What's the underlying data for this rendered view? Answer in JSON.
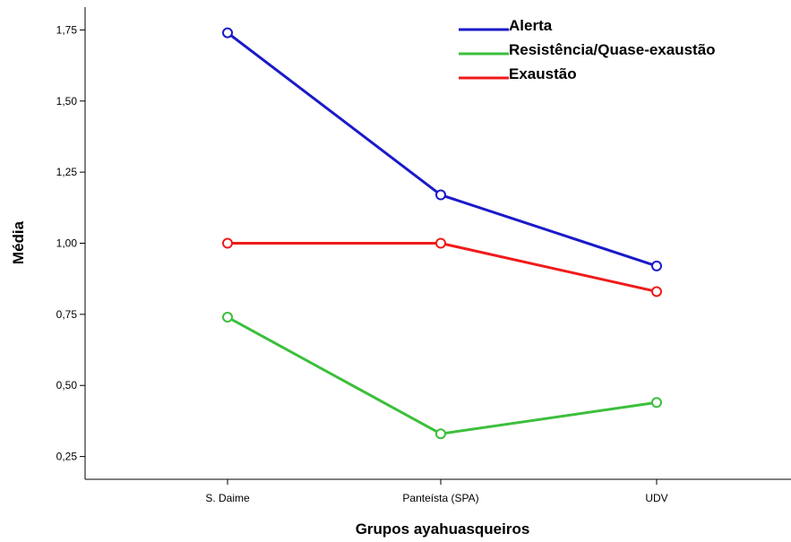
{
  "chart_data": {
    "type": "line",
    "xlabel": "Grupos ayahuasqueiros",
    "ylabel": "Média",
    "categories": [
      "S. Daime",
      "Panteísta (SPA)",
      "UDV"
    ],
    "ylim": [
      0.17,
      1.83
    ],
    "yticks": [
      "1,75",
      "1,50",
      "1,25",
      "1,00",
      "0,75",
      "0,50",
      "0,25"
    ],
    "ytick_values": [
      1.75,
      1.5,
      1.25,
      1.0,
      0.75,
      0.5,
      0.25
    ],
    "grid": false,
    "legend": "top-right",
    "series": [
      {
        "name": "Alerta",
        "color": "#1a1ac8",
        "values": [
          1.74,
          1.17,
          0.92
        ]
      },
      {
        "name": "Resistência/Quase-exaustão",
        "color": "#3cbf3c",
        "values": [
          0.74,
          0.33,
          0.44
        ]
      },
      {
        "name": "Exaustão",
        "color": "#f01a1a",
        "values": [
          1.0,
          1.0,
          0.83
        ]
      }
    ]
  }
}
